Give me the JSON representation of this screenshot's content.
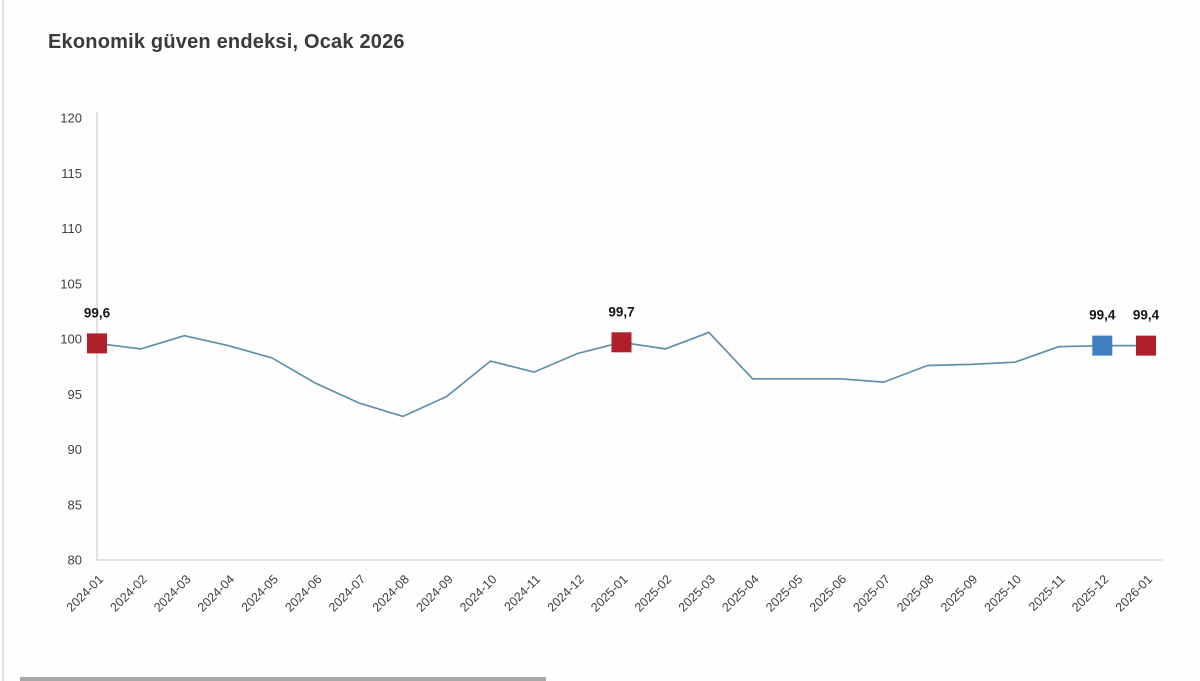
{
  "page": {
    "title": "Ekonomik güven endeksi, Ocak 2026"
  },
  "colors": {
    "line": "#5e90a8",
    "marker_red": "#b11f2a",
    "marker_blue": "#3f7fc1",
    "axis_line": "#d8d8d8",
    "tick_label": "#3f3f3f",
    "title_text": "#3a3a3a",
    "data_label": "#141414",
    "bottom_bar": "#a8a8a8"
  },
  "chart_data": {
    "type": "line",
    "title": "Ekonomik güven endeksi, Ocak 2026",
    "categories": [
      "2024-01",
      "2024-02",
      "2024-03",
      "2024-04",
      "2024-05",
      "2024-06",
      "2024-07",
      "2024-08",
      "2024-09",
      "2024-10",
      "2024-11",
      "2024-12",
      "2025-01",
      "2025-02",
      "2025-03",
      "2025-04",
      "2025-05",
      "2025-06",
      "2025-07",
      "2025-08",
      "2025-09",
      "2025-10",
      "2025-11",
      "2025-12",
      "2026-01"
    ],
    "values": [
      99.6,
      99.1,
      100.3,
      99.4,
      98.3,
      96.0,
      94.2,
      93.0,
      94.8,
      98.0,
      97.0,
      98.7,
      99.7,
      99.1,
      100.6,
      96.4,
      96.4,
      96.4,
      96.1,
      97.6,
      97.7,
      97.9,
      99.3,
      99.4,
      99.4
    ],
    "ylim": [
      80,
      120
    ],
    "ytick_step": 5,
    "yticks": [
      "80",
      "85",
      "90",
      "95",
      "100",
      "105",
      "110",
      "115",
      "120"
    ],
    "grid": false,
    "legend": "none",
    "xlabel": "",
    "ylabel": "",
    "highlighted_points": [
      {
        "index": 0,
        "category": "2024-01",
        "value": 99.6,
        "label": "99,6",
        "marker": "square",
        "color": "#b11f2a"
      },
      {
        "index": 12,
        "category": "2025-01",
        "value": 99.7,
        "label": "99,7",
        "marker": "square",
        "color": "#b11f2a"
      },
      {
        "index": 23,
        "category": "2025-12",
        "value": 99.4,
        "label": "99,4",
        "marker": "square",
        "color": "#3f7fc1"
      },
      {
        "index": 24,
        "category": "2026-01",
        "value": 99.4,
        "label": "99,4",
        "marker": "square",
        "color": "#b11f2a"
      }
    ]
  }
}
